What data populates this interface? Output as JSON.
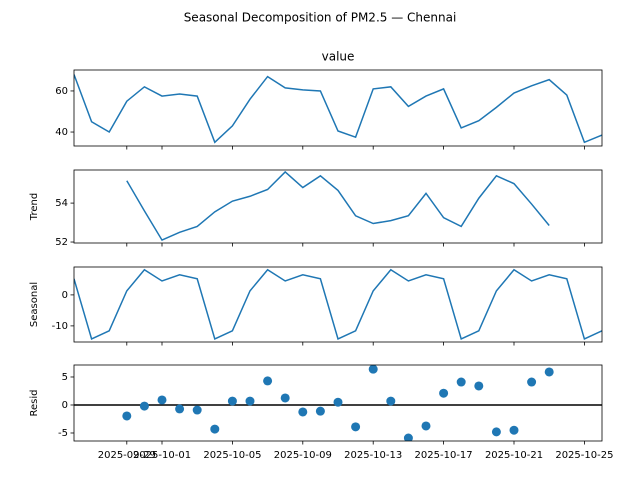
{
  "title": "Seasonal Decomposition of PM2.5 — Chennai",
  "x": [
    "2025-09-26",
    "2025-09-27",
    "2025-09-28",
    "2025-09-29",
    "2025-09-30",
    "2025-10-01",
    "2025-10-02",
    "2025-10-03",
    "2025-10-04",
    "2025-10-05",
    "2025-10-06",
    "2025-10-07",
    "2025-10-08",
    "2025-10-09",
    "2025-10-10",
    "2025-10-11",
    "2025-10-12",
    "2025-10-13",
    "2025-10-14",
    "2025-10-15",
    "2025-10-16",
    "2025-10-17",
    "2025-10-18",
    "2025-10-19",
    "2025-10-20",
    "2025-10-21",
    "2025-10-22",
    "2025-10-23",
    "2025-10-24",
    "2025-10-25",
    "2025-10-26"
  ],
  "xlim": [
    "2025-09-26",
    "2025-10-26"
  ],
  "xticks": [
    "2025-09-29",
    "2025-10-01",
    "2025-10-05",
    "2025-10-09",
    "2025-10-13",
    "2025-10-17",
    "2025-10-21",
    "2025-10-25"
  ],
  "chart_data": [
    {
      "type": "line",
      "title": "value",
      "color": "#1f77b4",
      "ylim": [
        33.2,
        70.2
      ],
      "yticks": [
        40,
        60
      ],
      "values": [
        68,
        45,
        40,
        55,
        62,
        57.5,
        58.5,
        57.5,
        35,
        43,
        56,
        67,
        61.5,
        60.5,
        60,
        40.5,
        37.5,
        61,
        62,
        52.5,
        57.5,
        61,
        42,
        45.5,
        52,
        59,
        62.5,
        65.5,
        58,
        35,
        38.5
      ]
    },
    {
      "type": "line",
      "ylabel": "Trend",
      "color": "#1f77b4",
      "ylim": [
        51.95,
        55.7
      ],
      "yticks": [
        52,
        54
      ],
      "values": [
        null,
        null,
        null,
        55.15,
        53.6,
        52.1,
        52.5,
        52.8,
        53.55,
        54.1,
        54.35,
        54.7,
        55.6,
        54.8,
        55.4,
        54.65,
        53.35,
        52.95,
        53.1,
        53.35,
        54.5,
        53.25,
        52.8,
        54.25,
        55.4,
        55.0,
        53.95,
        52.85,
        null,
        null,
        null
      ]
    },
    {
      "type": "line",
      "ylabel": "Seasonal",
      "color": "#1f77b4",
      "ylim": [
        -15.2,
        9.0
      ],
      "yticks": [
        -10,
        0
      ],
      "values": [
        5.2,
        -14.2,
        -11.6,
        1.3,
        8.1,
        4.5,
        6.5,
        5.2,
        -14.2,
        -11.6,
        1.3,
        8.1,
        4.5,
        6.5,
        5.2,
        -14.2,
        -11.6,
        1.3,
        8.1,
        4.5,
        6.5,
        5.2,
        -14.2,
        -11.6,
        1.3,
        8.1,
        4.5,
        6.5,
        5.2,
        -14.2,
        -11.6
      ]
    },
    {
      "type": "scatter",
      "ylabel": "Resid",
      "color": "#1f77b4",
      "ylim": [
        -6.43,
        7.14
      ],
      "yticks": [
        -5,
        0,
        5
      ],
      "hline": 0,
      "values": [
        null,
        null,
        null,
        -1.96,
        -0.2,
        0.9,
        -0.7,
        -0.9,
        -4.3,
        0.7,
        0.7,
        4.3,
        1.25,
        -1.25,
        -1.1,
        0.5,
        -3.9,
        6.4,
        0.7,
        -5.9,
        -3.75,
        2.1,
        4.1,
        3.4,
        -4.8,
        -4.5,
        4.1,
        5.9,
        null,
        null,
        null
      ]
    }
  ]
}
